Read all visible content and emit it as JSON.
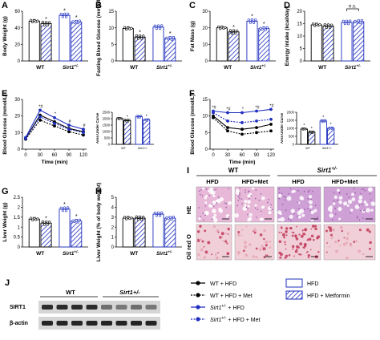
{
  "colors": {
    "wt": "#000000",
    "sirt": "#1f2fbf",
    "bar_fill_wt": "#ffffff",
    "hatch": "#1f2fbf",
    "tissue_he_wt": "#e7b8d8",
    "tissue_he_sirt": "#cfa0d6",
    "tissue_oil": "#f0cfd8",
    "oil_red": "#c23a5a",
    "blot_band": "#1a1a1a",
    "blot_bg": "#d6d6d6"
  },
  "chart_data": [
    {
      "id": "A",
      "type": "bar",
      "panel": "A",
      "ylabel": "Body Weight (g)",
      "ylim": [
        0,
        60
      ],
      "yticks": [
        0,
        20,
        40,
        60
      ],
      "group_labels": [
        "WT",
        "Sirt1+/-"
      ],
      "bars": [
        {
          "label": "HFD",
          "group": 0,
          "value": 48,
          "sig": ""
        },
        {
          "label": "HFD + Metformin",
          "group": 0,
          "value": 45,
          "sig": "*"
        },
        {
          "label": "HFD",
          "group": 1,
          "value": 55,
          "sig": "*"
        },
        {
          "label": "HFD + Metformin",
          "group": 1,
          "value": 47,
          "sig": "*"
        }
      ]
    },
    {
      "id": "B",
      "type": "bar",
      "panel": "B",
      "ylabel": "Fasting Blood Glucose (mmol/L)",
      "ylim": [
        0,
        15
      ],
      "yticks": [
        0,
        5,
        10,
        15
      ],
      "group_labels": [
        "WT",
        "Sirt1+/-"
      ],
      "bars": [
        {
          "label": "HFD",
          "group": 0,
          "value": 9.8,
          "sig": ""
        },
        {
          "label": "HFD + Metformin",
          "group": 0,
          "value": 7.2,
          "sig": "*"
        },
        {
          "label": "HFD",
          "group": 1,
          "value": 10.2,
          "sig": ""
        },
        {
          "label": "HFD + Metformin",
          "group": 1,
          "value": 6.8,
          "sig": "*"
        }
      ]
    },
    {
      "id": "C",
      "type": "bar",
      "panel": "C",
      "ylabel": "Fat Mass (g)",
      "ylim": [
        0,
        30
      ],
      "yticks": [
        0,
        10,
        20,
        30
      ],
      "group_labels": [
        "WT",
        "Sirt1+/-"
      ],
      "bars": [
        {
          "label": "HFD",
          "group": 0,
          "value": 20,
          "sig": ""
        },
        {
          "label": "HFD + Metformin",
          "group": 0,
          "value": 17.5,
          "sig": "*"
        },
        {
          "label": "HFD",
          "group": 1,
          "value": 24,
          "sig": "*"
        },
        {
          "label": "HFD + Metformin",
          "group": 1,
          "value": 19.5,
          "sig": "*"
        }
      ]
    },
    {
      "id": "D",
      "type": "bar",
      "panel": "D",
      "ylabel": "Energy Intake (kcal/day)",
      "ylim": [
        0,
        20
      ],
      "yticks": [
        0,
        5,
        10,
        15,
        20
      ],
      "group_labels": [
        "WT",
        "Sirt1+/-"
      ],
      "bracket": {
        "from": 2,
        "to": 3,
        "label": "n.s."
      },
      "bars": [
        {
          "label": "HFD",
          "group": 0,
          "value": 14.5,
          "sig": ""
        },
        {
          "label": "HFD + Metformin",
          "group": 0,
          "value": 14.0,
          "sig": ""
        },
        {
          "label": "HFD",
          "group": 1,
          "value": 15.5,
          "sig": ""
        },
        {
          "label": "HFD + Metformin",
          "group": 1,
          "value": 15.8,
          "sig": ""
        }
      ]
    },
    {
      "id": "E",
      "type": "line",
      "panel": "E",
      "ylabel": "Blood Glucose (mmol/L)",
      "xlabel": "Time (min)",
      "x": [
        0,
        30,
        60,
        90,
        120
      ],
      "ylim": [
        0,
        30
      ],
      "yticks": [
        0,
        10,
        20,
        30
      ],
      "series": [
        {
          "name": "WT + HFD",
          "values": [
            6.5,
            20.5,
            16.5,
            12.5,
            10.5
          ]
        },
        {
          "name": "WT + HFD + Met",
          "values": [
            6.0,
            17.5,
            14.0,
            10.5,
            8.5
          ]
        },
        {
          "name": "Sirt1+/- + HFD",
          "values": [
            7.0,
            23.5,
            19.0,
            14.5,
            12.0
          ]
        },
        {
          "name": "Sirt1+/- + HFD + Met",
          "values": [
            6.5,
            19.5,
            15.5,
            12.0,
            10.0
          ]
        }
      ],
      "annotations": [
        {
          "x": 30,
          "text": "*#"
        },
        {
          "x": 60,
          "text": "*"
        },
        {
          "x": 90,
          "text": "#"
        },
        {
          "x": 120,
          "text": "#"
        }
      ]
    },
    {
      "id": "E2",
      "type": "bar",
      "panel": "E",
      "ylabel": "Area Under Curve",
      "ylim": [
        0,
        2500
      ],
      "yticks": [
        0,
        500,
        1000,
        1500,
        2000,
        2500
      ],
      "group_labels": [
        "WT",
        "Sirt1+/-"
      ],
      "bars": [
        {
          "label": "HFD",
          "group": 0,
          "value": 2000,
          "sig": ""
        },
        {
          "label": "HFD + Metformin",
          "group": 0,
          "value": 1850,
          "sig": "*"
        },
        {
          "label": "HFD",
          "group": 1,
          "value": 2150,
          "sig": ""
        },
        {
          "label": "HFD + Metformin",
          "group": 1,
          "value": 1900,
          "sig": "*"
        }
      ]
    },
    {
      "id": "F",
      "type": "line",
      "panel": "F",
      "ylabel": "Blood Glucose (mmol/L)",
      "xlabel": "Time (min)",
      "x": [
        0,
        30,
        60,
        90,
        120
      ],
      "ylim": [
        0,
        15
      ],
      "yticks": [
        0,
        5,
        10,
        15
      ],
      "series": [
        {
          "name": "WT + HFD",
          "values": [
            10.0,
            6.5,
            6.0,
            6.5,
            7.5
          ]
        },
        {
          "name": "WT + HFD + Met",
          "values": [
            9.5,
            5.5,
            4.5,
            5.0,
            5.5
          ]
        },
        {
          "name": "Sirt1+/- + HFD",
          "values": [
            11.5,
            11.0,
            11.0,
            11.5,
            12.0
          ]
        },
        {
          "name": "Sirt1+/- + HFD + Met",
          "values": [
            11.0,
            8.5,
            8.0,
            8.5,
            9.0
          ]
        }
      ],
      "annotations": [
        {
          "x": 0,
          "text": "*#"
        },
        {
          "x": 30,
          "text": "*#"
        },
        {
          "x": 60,
          "text": "*"
        },
        {
          "x": 90,
          "text": "*#"
        },
        {
          "x": 120,
          "text": "*#"
        }
      ]
    },
    {
      "id": "F2",
      "type": "bar",
      "panel": "F",
      "ylabel": "Area Under Curve",
      "ylim": [
        0,
        2000
      ],
      "yticks": [
        0,
        500,
        1000,
        1500,
        2000
      ],
      "group_labels": [
        "WT",
        "Sirt1+/-"
      ],
      "bars": [
        {
          "label": "HFD",
          "group": 0,
          "value": 950,
          "sig": "*"
        },
        {
          "label": "HFD + Metformin",
          "group": 0,
          "value": 750,
          "sig": "*"
        },
        {
          "label": "HFD",
          "group": 1,
          "value": 1450,
          "sig": "*"
        },
        {
          "label": "HFD + Metformin",
          "group": 1,
          "value": 1000,
          "sig": "*"
        }
      ]
    },
    {
      "id": "G",
      "type": "bar",
      "panel": "G",
      "ylabel": "Liver Weight (g)",
      "ylim": [
        0,
        2.5
      ],
      "yticks": [
        0.0,
        0.5,
        1.0,
        1.5,
        2.0,
        2.5
      ],
      "group_labels": [
        "WT",
        "Sirt1+/-"
      ],
      "bars": [
        {
          "label": "HFD",
          "group": 0,
          "value": 1.4,
          "sig": ""
        },
        {
          "label": "HFD + Metformin",
          "group": 0,
          "value": 1.2,
          "sig": "*"
        },
        {
          "label": "HFD",
          "group": 1,
          "value": 1.9,
          "sig": "*"
        },
        {
          "label": "HFD + Metformin",
          "group": 1,
          "value": 1.3,
          "sig": "*"
        }
      ]
    },
    {
      "id": "H",
      "type": "bar",
      "panel": "H",
      "ylabel": "Liver Weight (% of body weight)",
      "ylim": [
        0,
        5
      ],
      "yticks": [
        0,
        1,
        2,
        3,
        4,
        5
      ],
      "group_labels": [
        "WT",
        "Sirt1+/-"
      ],
      "bars": [
        {
          "label": "HFD",
          "group": 0,
          "value": 2.9,
          "sig": ""
        },
        {
          "label": "HFD + Metformin",
          "group": 0,
          "value": 2.9,
          "sig": ""
        },
        {
          "label": "HFD",
          "group": 1,
          "value": 3.3,
          "sig": ""
        },
        {
          "label": "HFD + Metformin",
          "group": 1,
          "value": 2.9,
          "sig": ""
        }
      ]
    }
  ],
  "small_axis_labels": {
    "wt": "WT",
    "sirt": "Sirt1+/-"
  },
  "x_group_labels": {
    "wt": "WT",
    "sirt": "Sirt1",
    "sirt_sup": "+/-"
  },
  "panel_i": {
    "letter": "I",
    "groups": [
      {
        "label": "WT"
      },
      {
        "label": "Sirt1",
        "sup": "+/-"
      }
    ],
    "columns": [
      "HFD",
      "HFD+Met",
      "HFD",
      "HFD+Met"
    ],
    "rows": [
      "HE",
      "Oil red O"
    ]
  },
  "panel_j": {
    "letter": "J",
    "group_wt": "WT",
    "group_sirt": "Sirt1+/-",
    "rows": [
      "SIRT1",
      "β-actin"
    ],
    "sirt1_intensity": [
      0.9,
      0.9,
      0.9,
      0.9,
      0.55,
      0.5,
      0.55,
      0.5
    ],
    "actin_intensity": [
      0.95,
      0.95,
      0.95,
      0.95,
      0.95,
      0.95,
      0.95,
      0.95
    ]
  },
  "legend": {
    "line_items": [
      {
        "text": "WT + HFD"
      },
      {
        "text": "WT + HFD + Met"
      },
      {
        "text_main": "Sirt1",
        "sup": "+/-",
        "text_rest": " + HFD"
      },
      {
        "text_main": "Sirt1",
        "sup": "+/-",
        "text_rest": " + HFD + Met"
      }
    ],
    "bar_items": [
      {
        "text": "HFD"
      },
      {
        "text": "HFD + Metformin"
      }
    ]
  }
}
